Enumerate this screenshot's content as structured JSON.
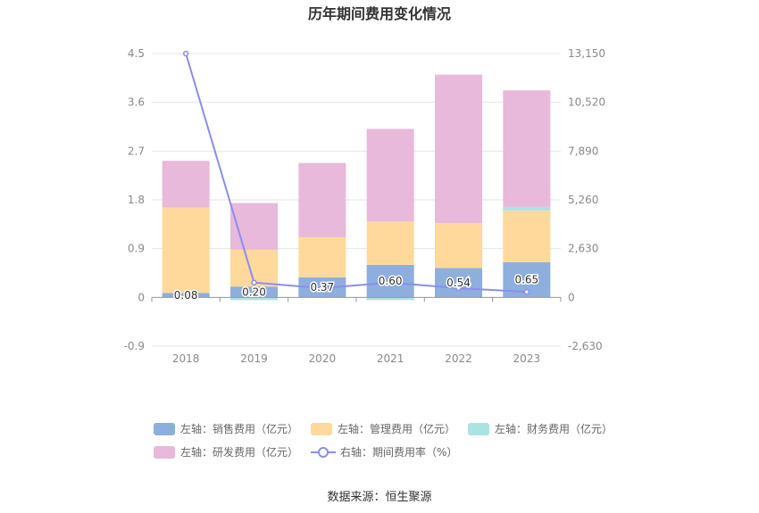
{
  "title": "历年期间费用变化情况",
  "source": "数据来源：恒生聚源",
  "colors": {
    "sales": "#8eaedd",
    "admin": "#fed99b",
    "finance": "#abe3e3",
    "rnd": "#e8b9db",
    "rate_line": "#8c8cf0",
    "axis": "#999999",
    "grid": "#e6e6e6"
  },
  "legend": [
    {
      "label": "左轴：销售费用（亿元）",
      "color": "#8eaedd"
    },
    {
      "label": "左轴：管理费用（亿元）",
      "color": "#fed99b"
    },
    {
      "label": "左轴：财务费用（亿元）",
      "color": "#abe3e3"
    },
    {
      "label": "左轴：研发费用（亿元）",
      "color": "#e8b9db"
    },
    {
      "label": "右轴：期间费用率（%）",
      "color": "#8c8cf0"
    }
  ],
  "chart_data": {
    "type": "bar",
    "stacked": true,
    "title": "历年期间费用变化情况",
    "categories": [
      "2018",
      "2019",
      "2020",
      "2021",
      "2022",
      "2023"
    ],
    "left_axis": {
      "min": -0.9,
      "max": 4.5,
      "ticks": [
        "4.5",
        "3.6",
        "2.7",
        "1.8",
        "0.9",
        "0",
        "-0.9"
      ]
    },
    "right_axis": {
      "min": -2630,
      "max": 13150,
      "ticks": [
        "13,150",
        "10,520",
        "7,890",
        "5,260",
        "2,630",
        "0",
        "-2,630"
      ]
    },
    "series": [
      {
        "name": "左轴：销售费用（亿元）",
        "axis": "left",
        "values": [
          0.08,
          0.2,
          0.37,
          0.6,
          0.54,
          0.65
        ],
        "labels": [
          "0.08",
          "0.20",
          "0.37",
          "0.60",
          "0.54",
          "0.65"
        ]
      },
      {
        "name": "左轴：管理费用（亿元）",
        "axis": "left",
        "values": [
          1.58,
          0.68,
          0.74,
          0.8,
          0.83,
          0.95
        ]
      },
      {
        "name": "左轴：财务费用（亿元）",
        "axis": "left",
        "values": [
          0.0,
          -0.05,
          0.0,
          -0.05,
          0.0,
          0.07
        ]
      },
      {
        "name": "左轴：研发费用（亿元）",
        "axis": "left",
        "values": [
          0.86,
          0.86,
          1.37,
          1.71,
          2.74,
          2.15
        ]
      },
      {
        "name": "右轴：期间费用率（%）",
        "axis": "right",
        "type": "line",
        "values": [
          13150,
          800,
          500,
          800,
          500,
          300
        ]
      }
    ],
    "grid": true,
    "legend_position": "bottom"
  }
}
